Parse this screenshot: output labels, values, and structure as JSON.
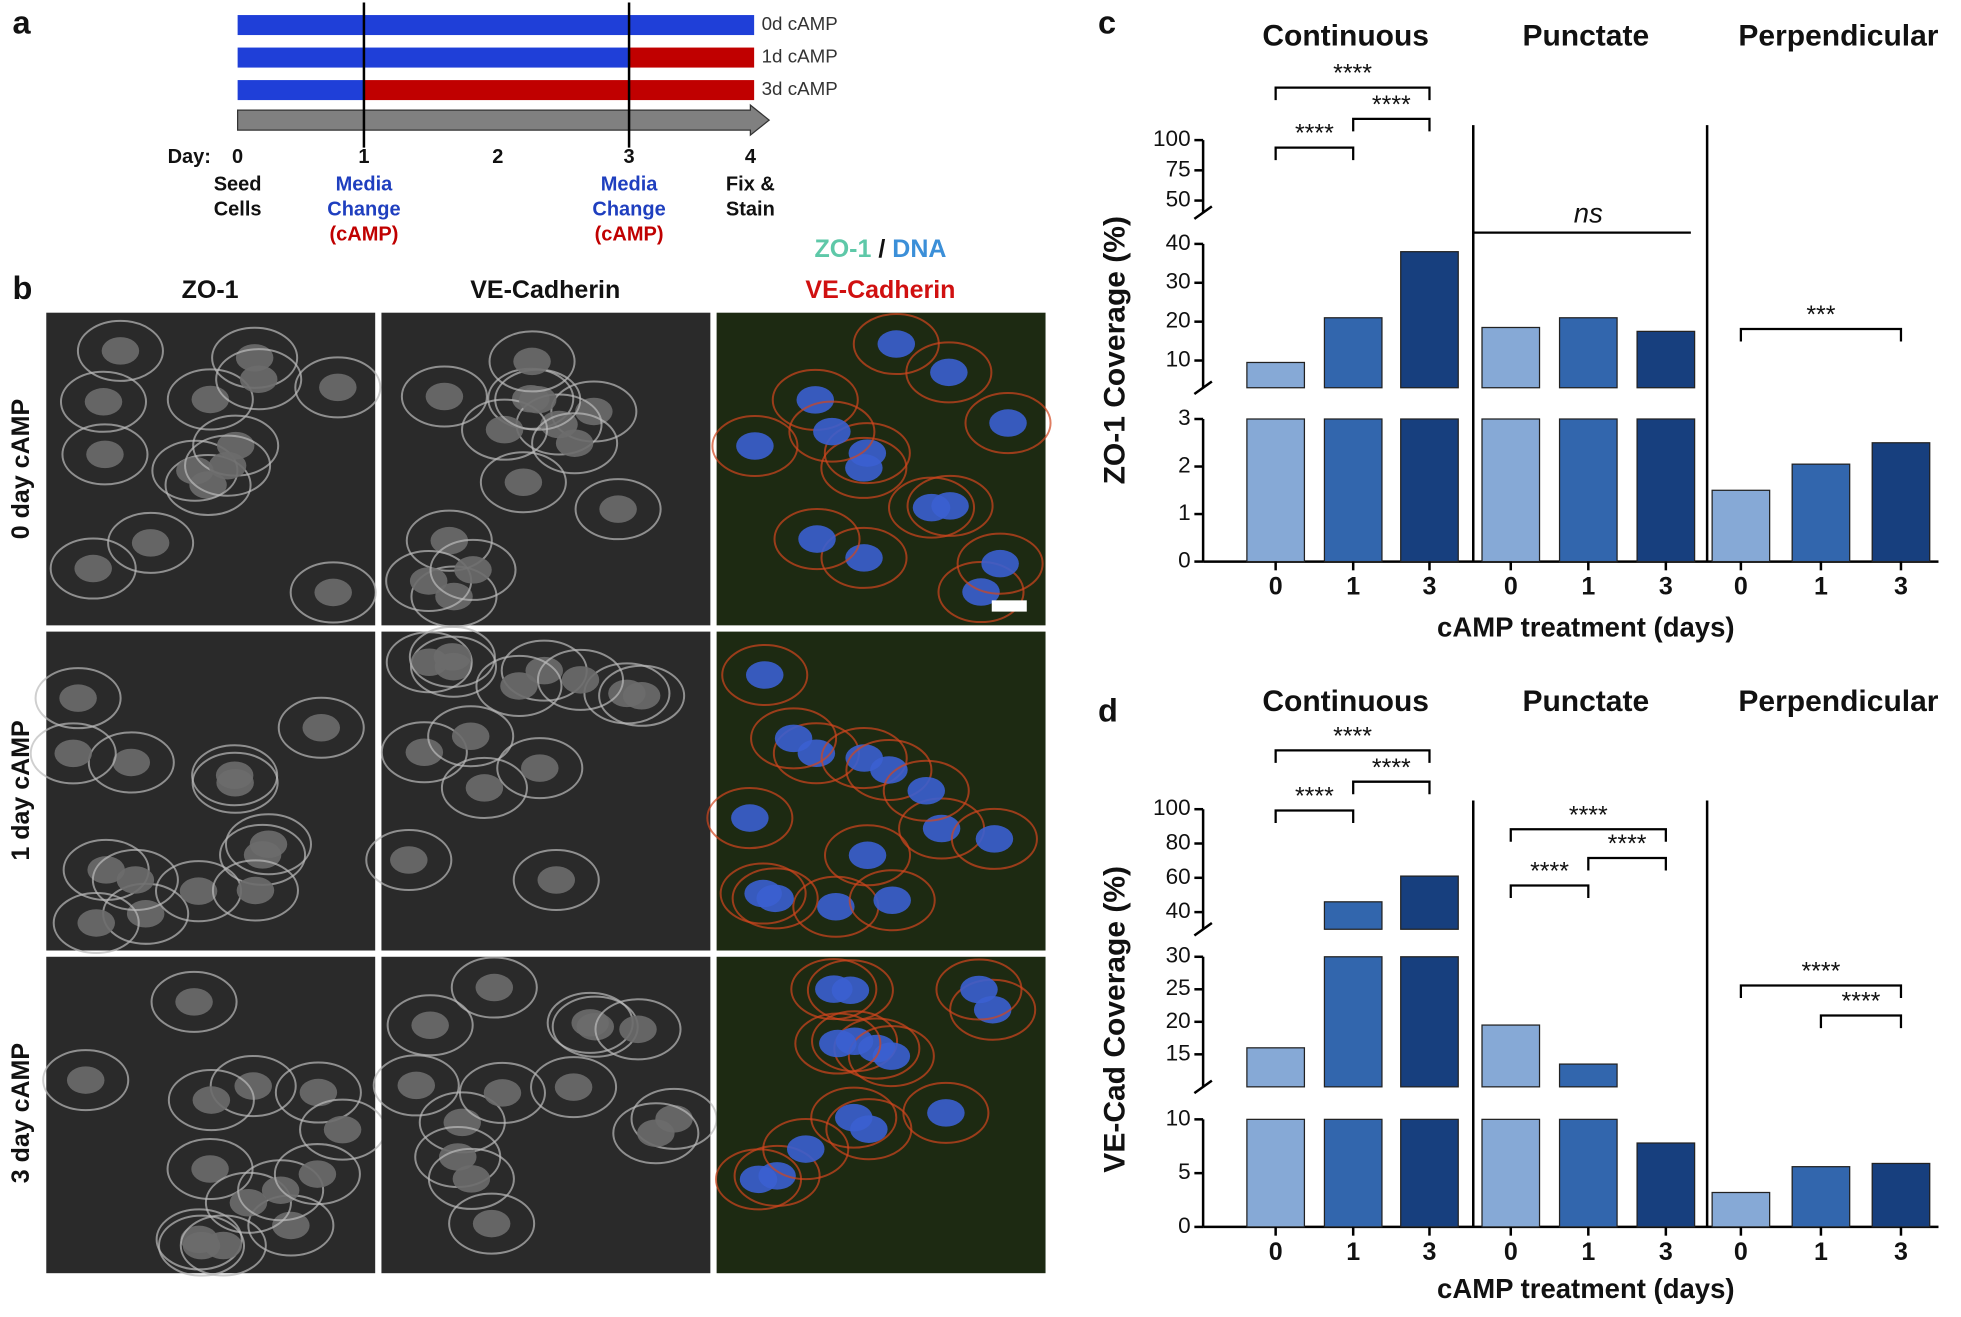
{
  "panel_labels": [
    "a",
    "b",
    "c",
    "d"
  ],
  "timeline": {
    "conditions": [
      "0d cAMP",
      "1d cAMP",
      "3d cAMP"
    ],
    "day_label": "Day:",
    "days": [
      "0",
      "1",
      "2",
      "3",
      "4"
    ],
    "events": [
      [
        "Seed",
        "Cells"
      ],
      [
        "Media",
        "Change",
        "(cAMP)"
      ],
      [
        "Media",
        "Change",
        "(cAMP)"
      ],
      [
        "Fix &",
        "Stain"
      ]
    ]
  },
  "micrographs": {
    "columns": [
      "ZO-1",
      "VE-Cadherin"
    ],
    "merge": [
      "ZO-1",
      "/",
      "DNA",
      "VE-Cadherin"
    ],
    "rows": [
      "0 day cAMP",
      "1 day cAMP",
      "3 day cAMP"
    ]
  },
  "chart_data": [
    {
      "type": "bar",
      "groups": [
        "Continuous",
        "Punctate",
        "Perpendicular"
      ],
      "categories": [
        "0",
        "1",
        "3"
      ],
      "colors": [
        "#86a9d6",
        "#3266ad",
        "#173f7e"
      ],
      "values": [
        [
          9.5,
          21,
          38
        ],
        [
          18.5,
          21,
          17.5
        ],
        [
          1.5,
          2.05,
          2.5
        ]
      ],
      "y_label": "ZO-1 Coverage (%)",
      "x_label": "cAMP treatment (days)",
      "y_segments": [
        {
          "ylim": [
            0,
            3
          ],
          "yticks": [
            0,
            1,
            2,
            3
          ]
        },
        {
          "ylim": [
            3,
            40
          ],
          "yticks": [
            10,
            20,
            30,
            40
          ]
        },
        {
          "ylim": [
            40,
            100
          ],
          "yticks": [
            50,
            75,
            100
          ]
        }
      ],
      "annotations": [
        "****",
        "****",
        "****",
        "ns",
        "***"
      ]
    },
    {
      "type": "bar",
      "groups": [
        "Continuous",
        "Punctate",
        "Perpendicular"
      ],
      "categories": [
        "0",
        "1",
        "3"
      ],
      "colors": [
        "#86a9d6",
        "#3266ad",
        "#173f7e"
      ],
      "values": [
        [
          16,
          46,
          61
        ],
        [
          19.5,
          13.5,
          7.8
        ],
        [
          3.2,
          5.6,
          5.9
        ]
      ],
      "y_label": "VE-Cad Coverage (%)",
      "x_label": "cAMP treatment (days)",
      "y_segments": [
        {
          "ylim": [
            0,
            10
          ],
          "yticks": [
            0,
            5,
            10
          ]
        },
        {
          "ylim": [
            10,
            30
          ],
          "yticks": [
            15,
            20,
            25,
            30
          ]
        },
        {
          "ylim": [
            30,
            100
          ],
          "yticks": [
            40,
            60,
            80,
            100
          ]
        }
      ],
      "annotations": [
        "****",
        "****",
        "****",
        "****",
        "****",
        "****",
        "****",
        "****"
      ]
    }
  ]
}
